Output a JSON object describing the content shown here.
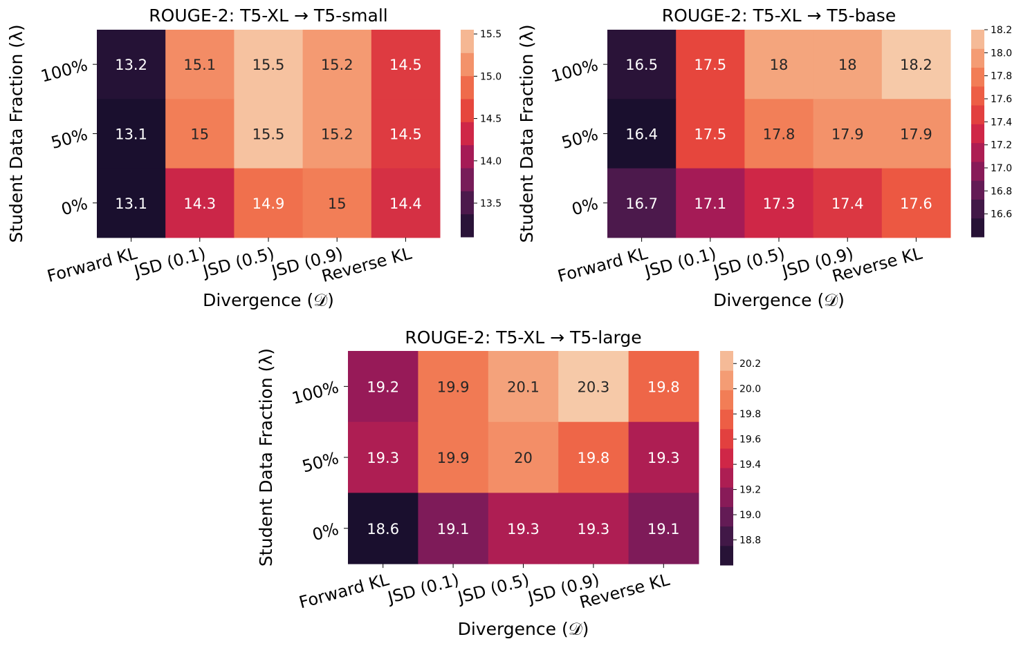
{
  "chart_data": [
    {
      "type": "heatmap",
      "title": "ROUGE-2: T5-XL → T5-small",
      "xlabel": "Divergence (𝒟)",
      "ylabel": "Student Data Fraction (λ)",
      "x_categories": [
        "Forward KL",
        "JSD (0.1)",
        "JSD (0.5)",
        "JSD (0.9)",
        "Reverse KL"
      ],
      "y_categories": [
        "100%",
        "50%",
        "0%"
      ],
      "cell_labels": [
        [
          "13.2",
          "15.1",
          "15.5",
          "15.2",
          "14.5"
        ],
        [
          "13.1",
          "15",
          "15.5",
          "15.2",
          "14.5"
        ],
        [
          "13.1",
          "14.3",
          "14.9",
          "15",
          "14.4"
        ]
      ],
      "values": [
        [
          13.2,
          15.1,
          15.5,
          15.2,
          14.5
        ],
        [
          13.1,
          15.0,
          15.5,
          15.2,
          14.5
        ],
        [
          13.1,
          14.3,
          14.9,
          15.0,
          14.4
        ]
      ],
      "vmin": 13.1,
      "vmax": 15.55,
      "colorbar_ticks": [
        "13.5",
        "14.0",
        "14.5",
        "15.0",
        "15.5"
      ]
    },
    {
      "type": "heatmap",
      "title": "ROUGE-2: T5-XL → T5-base",
      "xlabel": "Divergence (𝒟)",
      "ylabel": "Student Data Fraction (λ)",
      "x_categories": [
        "Forward KL",
        "JSD (0.1)",
        "JSD (0.5)",
        "JSD (0.9)",
        "Reverse KL"
      ],
      "y_categories": [
        "100%",
        "50%",
        "0%"
      ],
      "cell_labels": [
        [
          "16.5",
          "17.5",
          "18",
          "18",
          "18.2"
        ],
        [
          "16.4",
          "17.5",
          "17.8",
          "17.9",
          "17.9"
        ],
        [
          "16.7",
          "17.1",
          "17.3",
          "17.4",
          "17.6"
        ]
      ],
      "values": [
        [
          16.5,
          17.5,
          18.0,
          18.0,
          18.2
        ],
        [
          16.4,
          17.5,
          17.8,
          17.9,
          17.9
        ],
        [
          16.7,
          17.1,
          17.3,
          17.4,
          17.6
        ]
      ],
      "vmin": 16.4,
      "vmax": 18.2,
      "colorbar_ticks": [
        "16.6",
        "16.8",
        "17.0",
        "17.2",
        "17.4",
        "17.6",
        "17.8",
        "18.0",
        "18.2"
      ]
    },
    {
      "type": "heatmap",
      "title": "ROUGE-2: T5-XL → T5-large",
      "xlabel": "Divergence (𝒟)",
      "ylabel": "Student Data Fraction (λ)",
      "x_categories": [
        "Forward KL",
        "JSD (0.1)",
        "JSD (0.5)",
        "JSD (0.9)",
        "Reverse KL"
      ],
      "y_categories": [
        "100%",
        "50%",
        "0%"
      ],
      "cell_labels": [
        [
          "19.2",
          "19.9",
          "20.1",
          "20.3",
          "19.8"
        ],
        [
          "19.3",
          "19.9",
          "20",
          "19.8",
          "19.3"
        ],
        [
          "18.6",
          "19.1",
          "19.3",
          "19.3",
          "19.1"
        ]
      ],
      "values": [
        [
          19.2,
          19.9,
          20.1,
          20.3,
          19.8
        ],
        [
          19.3,
          19.9,
          20.0,
          19.8,
          19.3
        ],
        [
          18.6,
          19.1,
          19.3,
          19.3,
          19.1
        ]
      ],
      "vmin": 18.6,
      "vmax": 20.3,
      "colorbar_ticks": [
        "18.8",
        "19.0",
        "19.2",
        "19.4",
        "19.6",
        "19.8",
        "20.0",
        "20.2"
      ]
    }
  ],
  "colormap": "rocket",
  "colormap_stops": [
    "#1a0f2e",
    "#3d1845",
    "#6b1c59",
    "#a01a58",
    "#cf2747",
    "#e94a3c",
    "#f1754f",
    "#f4a078",
    "#f6c9a8"
  ]
}
